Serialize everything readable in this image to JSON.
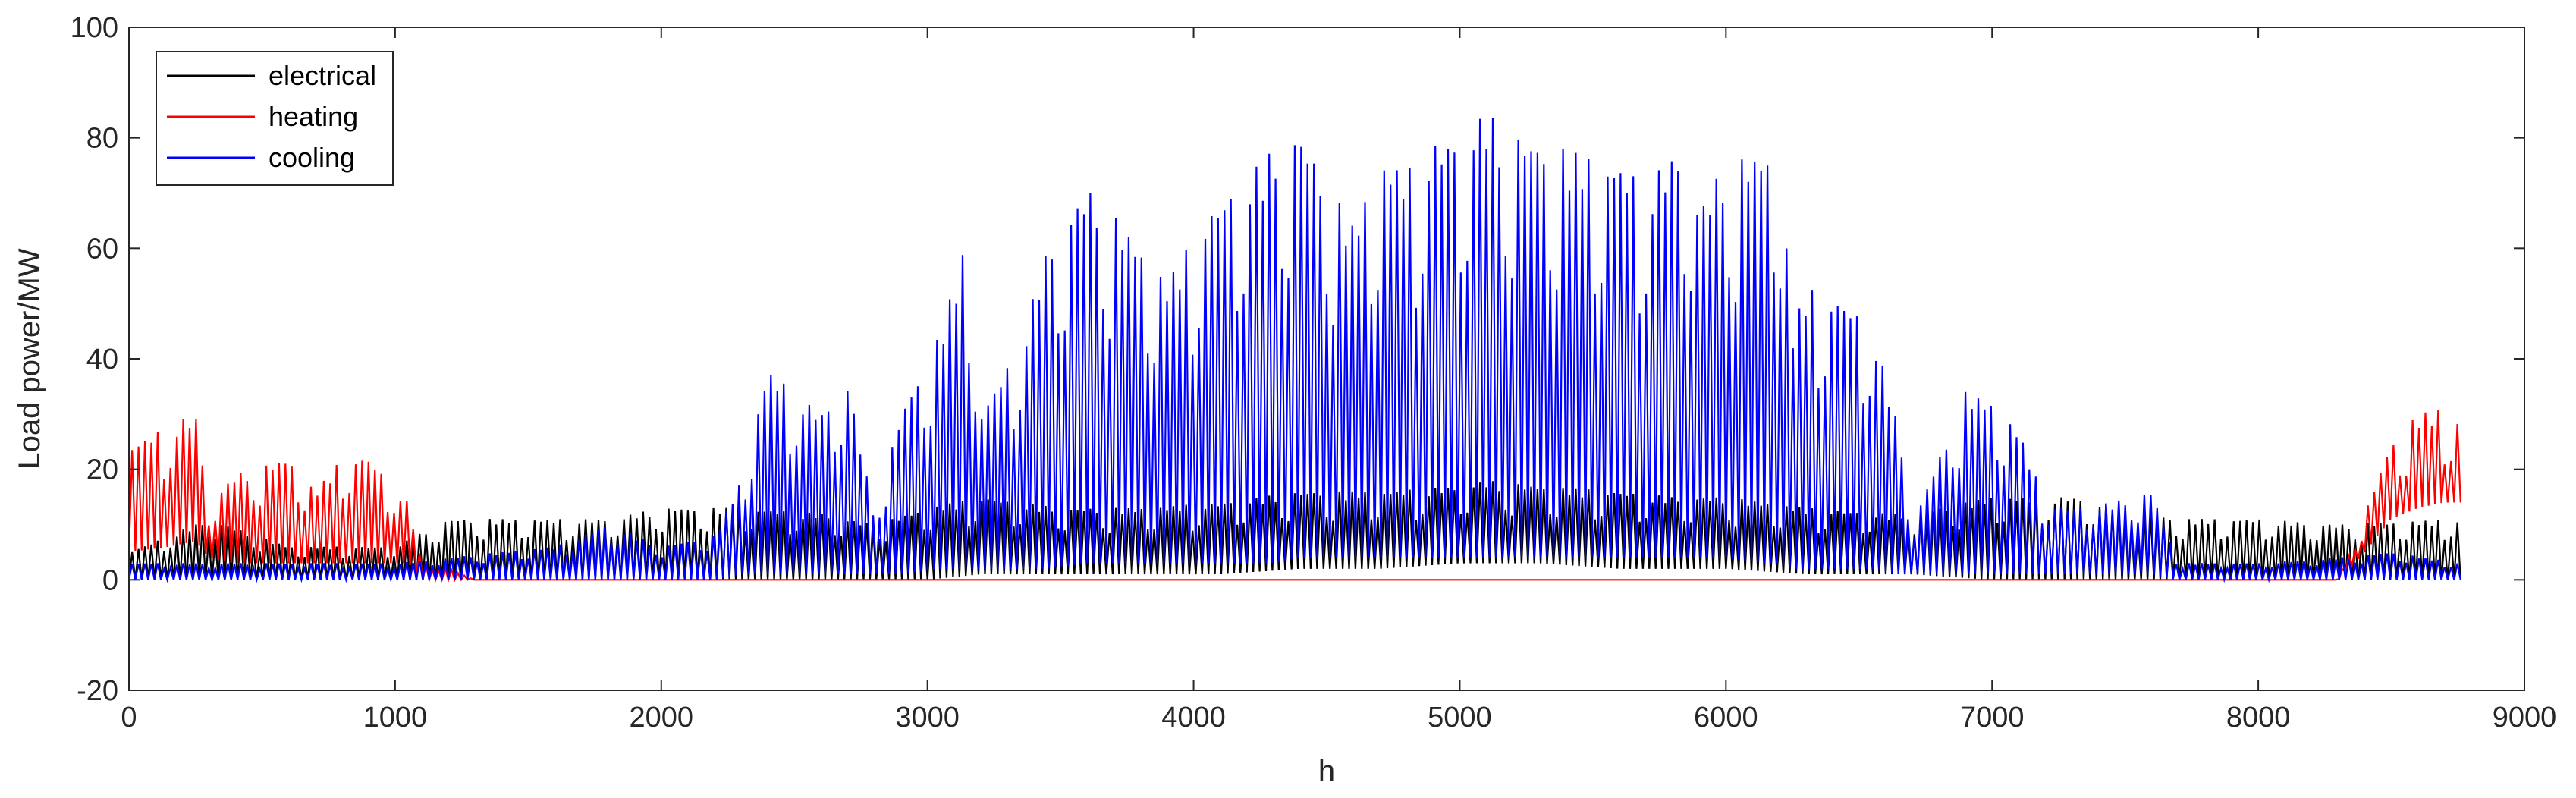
{
  "chart_data": {
    "type": "line",
    "title": "",
    "xlabel": "h",
    "ylabel": "Load power/MW",
    "xlim": [
      0,
      9000
    ],
    "ylim": [
      -20,
      100
    ],
    "xticks": [
      "0",
      "1000",
      "2000",
      "3000",
      "4000",
      "5000",
      "6000",
      "7000",
      "8000",
      "9000"
    ],
    "yticks": [
      "-20",
      "0",
      "20",
      "40",
      "60",
      "80",
      "100"
    ],
    "grid": false,
    "legend_position": "top-left",
    "series": [
      {
        "name": "electrical",
        "color": "#000000",
        "x": [
          0,
          300,
          600,
          1000,
          1200,
          1500,
          1800,
          2000,
          2300,
          2600,
          2800,
          3000,
          3200,
          3500,
          3800,
          4100,
          4400,
          4700,
          5000,
          5100,
          5300,
          5600,
          5800,
          6000,
          6300,
          6600,
          6700,
          7000,
          7300,
          7700,
          8000,
          8300,
          8760
        ],
        "high": [
          5,
          11,
          6,
          6,
          11,
          11,
          11,
          13,
          13,
          12,
          10,
          13,
          15,
          13,
          13,
          14,
          16,
          16,
          17,
          18,
          17,
          16,
          15,
          15,
          13,
          12,
          12,
          15,
          15,
          11,
          11,
          10,
          11
        ],
        "low": [
          0,
          0,
          0,
          0,
          0,
          0,
          0,
          0,
          0,
          0,
          0,
          0,
          1,
          1,
          1,
          1,
          2,
          2,
          3,
          3,
          3,
          2,
          2,
          2,
          1,
          1,
          1,
          0,
          0,
          0,
          0,
          0,
          0
        ]
      },
      {
        "name": "heating",
        "color": "#ff0000",
        "x": [
          0,
          150,
          250,
          300,
          400,
          600,
          700,
          800,
          900,
          1050,
          1100,
          1200,
          1300,
          8300,
          8400,
          8500,
          8600,
          8700,
          8760
        ],
        "high": [
          24,
          28,
          30,
          14,
          19,
          22,
          16,
          22,
          22,
          14,
          3,
          2,
          0,
          0,
          12,
          25,
          30,
          31,
          29
        ],
        "low": [
          5,
          6,
          7,
          4,
          3,
          3,
          3,
          3,
          3,
          3,
          0,
          0,
          0,
          0,
          5,
          11,
          13,
          14,
          14
        ]
      },
      {
        "name": "cooling",
        "color": "#0000ff",
        "x": [
          0,
          1000,
          1200,
          1600,
          1800,
          2000,
          2200,
          2300,
          2400,
          2600,
          2700,
          2800,
          2900,
          3050,
          3150,
          3200,
          3350,
          3450,
          3600,
          3700,
          3900,
          4050,
          4200,
          4300,
          4400,
          4500,
          4600,
          4700,
          4800,
          4900,
          5000,
          5100,
          5150,
          5300,
          5400,
          5450,
          5600,
          5700,
          5850,
          5900,
          6000,
          6150,
          6200,
          6250,
          6300,
          6450,
          6550,
          6650,
          6700,
          6800,
          6900,
          7000,
          7100,
          7200,
          7300,
          7450,
          7600,
          7700,
          8000,
          8300,
          8500,
          8760
        ],
        "high": [
          3,
          3,
          4,
          6,
          10,
          6,
          8,
          18,
          38,
          30,
          36,
          12,
          30,
          45,
          62,
          30,
          43,
          60,
          71,
          66,
          54,
          66,
          73,
          78,
          81,
          72,
          64,
          76,
          74,
          79,
          80,
          85,
          82,
          79,
          78,
          77,
          75,
          72,
          79,
          67,
          76,
          77,
          80,
          45,
          53,
          50,
          46,
          27,
          10,
          22,
          34,
          32,
          27,
          14,
          13,
          14,
          16,
          3,
          3,
          4,
          5,
          3
        ],
        "low": [
          0,
          0,
          0,
          0,
          0,
          0,
          0,
          1,
          1,
          1,
          1,
          1,
          1,
          2,
          2,
          2,
          2,
          2,
          3,
          3,
          3,
          3,
          3,
          3,
          4,
          4,
          4,
          4,
          4,
          4,
          4,
          4,
          4,
          4,
          4,
          4,
          4,
          4,
          4,
          4,
          4,
          3,
          3,
          2,
          2,
          2,
          2,
          1,
          1,
          1,
          1,
          1,
          1,
          1,
          1,
          1,
          1,
          0,
          0,
          0,
          0,
          0
        ]
      }
    ]
  }
}
